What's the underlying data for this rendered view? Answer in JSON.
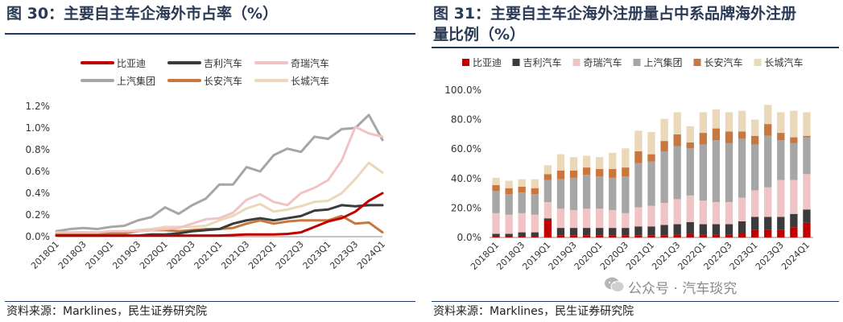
{
  "left": {
    "title": "图 30：主要自主车企海外市占率（%）",
    "source": "资料来源：Marklines，民生证券研究院"
  },
  "right": {
    "title_line1": "图 31：主要自主车企海外注册量占中系品牌海外注册",
    "title_line2": "量比例（%）",
    "source": "资料来源：Marklines，民生证券研究院"
  },
  "watermark": {
    "text": "公众号 · 汽车琰究",
    "icon": "wechat-icon"
  },
  "chart_data": [
    {
      "type": "line",
      "x": [
        "2018Q1",
        "2018Q2",
        "2018Q3",
        "2018Q4",
        "2019Q1",
        "2019Q2",
        "2019Q3",
        "2019Q4",
        "2020Q1",
        "2020Q2",
        "2020Q3",
        "2020Q4",
        "2021Q1",
        "2021Q2",
        "2021Q3",
        "2021Q4",
        "2022Q1",
        "2022Q2",
        "2022Q3",
        "2022Q4",
        "2023Q1",
        "2023Q2",
        "2023Q3",
        "2023Q4",
        "2024Q1"
      ],
      "x_tick_labels": [
        "2018Q1",
        "2018Q3",
        "2019Q1",
        "2019Q3",
        "2020Q1",
        "2020Q3",
        "2021Q1",
        "2021Q3",
        "2022Q1",
        "2022Q3",
        "2023Q1",
        "2023Q3",
        "2024Q1"
      ],
      "y_ticks": [
        "0.0%",
        "0.2%",
        "0.4%",
        "0.6%",
        "0.8%",
        "1.0%",
        "1.2%"
      ],
      "ylim": [
        0,
        1.2
      ],
      "legend_position": "top",
      "series": [
        {
          "name": "比亚迪",
          "color": "#c00000",
          "values": [
            0.01,
            0.01,
            0.01,
            0.01,
            0.01,
            0.01,
            0.01,
            0.01,
            0.01,
            0.01,
            0.01,
            0.01,
            0.01,
            0.015,
            0.02,
            0.02,
            0.02,
            0.025,
            0.04,
            0.09,
            0.14,
            0.17,
            0.23,
            0.33,
            0.4
          ]
        },
        {
          "name": "吉利汽车",
          "color": "#3b3b3b",
          "values": [
            0.01,
            0.01,
            0.01,
            0.01,
            0.01,
            0.01,
            0.01,
            0.02,
            0.02,
            0.03,
            0.05,
            0.06,
            0.07,
            0.12,
            0.15,
            0.17,
            0.15,
            0.17,
            0.19,
            0.24,
            0.25,
            0.29,
            0.28,
            0.29,
            0.29
          ]
        },
        {
          "name": "奇瑞汽车",
          "color": "#f0c4c4",
          "values": [
            0.04,
            0.04,
            0.04,
            0.04,
            0.05,
            0.05,
            0.05,
            0.06,
            0.07,
            0.08,
            0.12,
            0.16,
            0.17,
            0.22,
            0.34,
            0.39,
            0.32,
            0.29,
            0.4,
            0.45,
            0.52,
            0.7,
            1.01,
            0.95,
            0.92
          ]
        },
        {
          "name": "上汽集团",
          "color": "#a6a6a6",
          "values": [
            0.05,
            0.07,
            0.08,
            0.07,
            0.09,
            0.1,
            0.15,
            0.18,
            0.27,
            0.21,
            0.29,
            0.35,
            0.48,
            0.48,
            0.64,
            0.6,
            0.75,
            0.81,
            0.78,
            0.92,
            0.9,
            0.99,
            1.0,
            1.12,
            0.89
          ]
        },
        {
          "name": "长安汽车",
          "color": "#c8773f",
          "values": [
            0.02,
            0.02,
            0.02,
            0.03,
            0.03,
            0.03,
            0.05,
            0.06,
            0.06,
            0.05,
            0.06,
            0.07,
            0.07,
            0.08,
            0.12,
            0.15,
            0.12,
            0.14,
            0.15,
            0.15,
            0.15,
            0.19,
            0.12,
            0.13,
            0.04
          ]
        },
        {
          "name": "长城汽车",
          "color": "#ead8b8",
          "values": [
            0.03,
            0.03,
            0.03,
            0.03,
            0.04,
            0.04,
            0.06,
            0.07,
            0.09,
            0.09,
            0.09,
            0.1,
            0.15,
            0.19,
            0.26,
            0.3,
            0.23,
            0.25,
            0.28,
            0.32,
            0.33,
            0.4,
            0.53,
            0.68,
            0.59
          ]
        }
      ]
    },
    {
      "type": "bar",
      "stacked": true,
      "categories": [
        "2018Q1",
        "2018Q2",
        "2018Q3",
        "2018Q4",
        "2019Q1",
        "2019Q2",
        "2019Q3",
        "2019Q4",
        "2020Q1",
        "2020Q2",
        "2020Q3",
        "2020Q4",
        "2021Q1",
        "2021Q2",
        "2021Q3",
        "2021Q4",
        "2022Q1",
        "2022Q2",
        "2022Q3",
        "2022Q4",
        "2023Q1",
        "2023Q2",
        "2023Q3",
        "2023Q4",
        "2024Q1"
      ],
      "x_tick_labels": [
        "2018Q1",
        "2018Q3",
        "2019Q1",
        "2019Q3",
        "2020Q1",
        "2020Q3",
        "2021Q1",
        "2021Q3",
        "2022Q1",
        "2022Q3",
        "2023Q1",
        "2023Q3",
        "2024Q1"
      ],
      "y_ticks": [
        "0.0%",
        "20.0%",
        "40.0%",
        "60.0%",
        "80.0%",
        "100.0%"
      ],
      "ylim": [
        0,
        100
      ],
      "legend_position": "top",
      "series": [
        {
          "name": "比亚迪",
          "color": "#c00000",
          "values": [
            0.5,
            0.5,
            0.5,
            0.5,
            12,
            1.5,
            1.5,
            1.5,
            1.5,
            1.5,
            1.5,
            1.5,
            1.5,
            1.5,
            2,
            2.5,
            2,
            2,
            2,
            3,
            5,
            5,
            5,
            7,
            10
          ]
        },
        {
          "name": "吉利汽车",
          "color": "#3b3b3b",
          "values": [
            2,
            2,
            3,
            3,
            1,
            5,
            5,
            5,
            5,
            5,
            5,
            6,
            6,
            7,
            7,
            8,
            7,
            7,
            7,
            8,
            9,
            9,
            9,
            9,
            9
          ]
        },
        {
          "name": "奇瑞汽车",
          "color": "#f0c4c4",
          "values": [
            14,
            13,
            13,
            12,
            11,
            13,
            12,
            13,
            13,
            12,
            10,
            13,
            14,
            15,
            17,
            18,
            16,
            15,
            15,
            16,
            18,
            20,
            25,
            23,
            24
          ]
        },
        {
          "name": "上汽集团",
          "color": "#a6a6a6",
          "values": [
            15,
            14,
            14,
            14,
            15,
            20,
            22,
            23,
            22,
            22,
            25,
            30,
            30,
            35,
            36,
            32,
            38,
            42,
            40,
            40,
            31,
            35,
            27,
            25,
            25
          ]
        },
        {
          "name": "长安汽车",
          "color": "#c8773f",
          "values": [
            4,
            4,
            4,
            4,
            4,
            6,
            5,
            5,
            5,
            6,
            6,
            8,
            5,
            7,
            8,
            4,
            8,
            8,
            8,
            5,
            6,
            8,
            5,
            4,
            1
          ]
        },
        {
          "name": "长城汽车",
          "color": "#ead8b8",
          "values": [
            5,
            5,
            5,
            6,
            6,
            11,
            9,
            8,
            8,
            11,
            13,
            14,
            15,
            15,
            15,
            11,
            14,
            13,
            13,
            14,
            11,
            13,
            14,
            18,
            16
          ]
        }
      ]
    }
  ]
}
